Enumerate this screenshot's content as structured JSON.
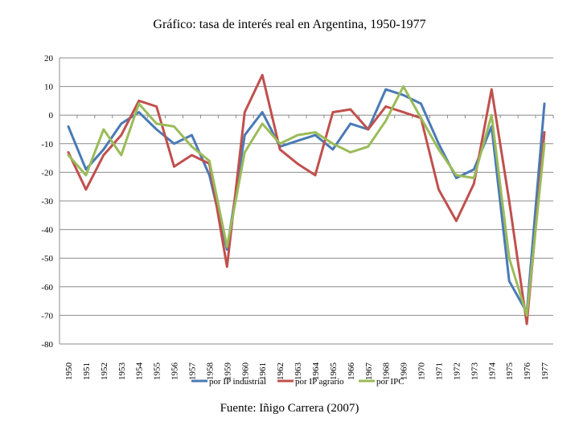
{
  "chart_data": {
    "type": "line",
    "title": "Gráfico: tasa de interés real en Argentina, 1950-1977",
    "xlabel": "",
    "ylabel": "",
    "ylim": [
      -80,
      20
    ],
    "yticks": [
      20,
      10,
      0,
      -10,
      -20,
      -30,
      -40,
      -50,
      -60,
      -70,
      -80
    ],
    "x": [
      "1950",
      "1951",
      "1952",
      "1953",
      "1954",
      "1955",
      "1956",
      "1957",
      "1958",
      "1959",
      "1960",
      "1961",
      "1962",
      "1963",
      "1964",
      "1965",
      "1966",
      "1967",
      "1968",
      "1969",
      "1970",
      "1971",
      "1972",
      "1973",
      "1974",
      "1975",
      "1976",
      "1977"
    ],
    "grid": true,
    "legend": "bottom",
    "series": [
      {
        "name": "por IP industrial",
        "color": "#4a7ab5",
        "values": [
          -4,
          -19,
          -12,
          -3,
          1,
          -5,
          -10,
          -7,
          -21,
          -47,
          -7,
          1,
          -11,
          -9,
          -7,
          -12,
          -3,
          -5,
          9,
          7,
          4,
          -10,
          -22,
          -19,
          -4,
          -58,
          -69,
          4
        ]
      },
      {
        "name": "por IP agrario",
        "color": "#c0504d",
        "values": [
          -13,
          -26,
          -14,
          -7,
          5,
          3,
          -18,
          -14,
          -17,
          -53,
          1,
          14,
          -12,
          -17,
          -21,
          1,
          2,
          -5,
          3,
          1,
          -1,
          -26,
          -37,
          -24,
          9,
          -30,
          -73,
          -6
        ]
      },
      {
        "name": "por IPC",
        "color": "#9bbb59",
        "values": [
          -14,
          -21,
          -5,
          -14,
          4,
          -3,
          -4,
          -11,
          -16,
          -46,
          -13,
          -3,
          -10,
          -7,
          -6,
          -10,
          -13,
          -11,
          -2,
          10,
          -1,
          -12,
          -21,
          -22,
          0,
          -50,
          -70,
          -10
        ]
      }
    ]
  },
  "source": "Fuente: Iñigo Carrera (2007)"
}
